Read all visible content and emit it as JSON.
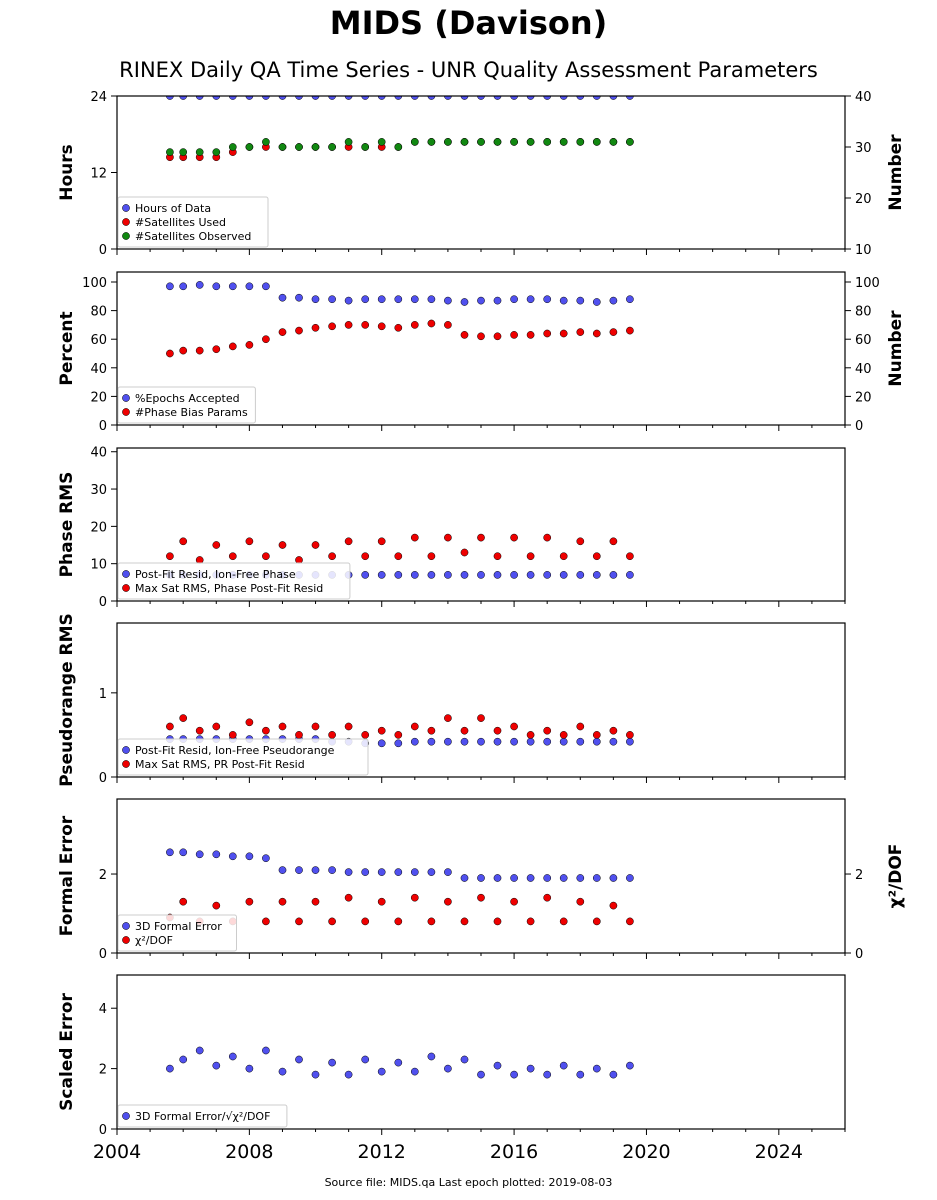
{
  "title": "MIDS (Davison)",
  "subtitle": "RINEX Daily QA Time Series - UNR Quality Assessment Parameters",
  "footer": "Source file: MIDS.qa Last epoch plotted: 2019-08-03",
  "x_ticks": [
    "2004",
    "2008",
    "2012",
    "2016",
    "2020",
    "2024"
  ],
  "colors": {
    "blue": "#5050ee",
    "red": "#ee0000",
    "green": "#118811"
  },
  "chart_data": [
    {
      "type": "scatter",
      "ylabel": "Hours",
      "ylabel_right": "Number",
      "xlim": [
        2004,
        2026
      ],
      "ylim": [
        0,
        24
      ],
      "ylim_right": [
        10,
        40
      ],
      "yticks": [
        0,
        12,
        24
      ],
      "yticks_right": [
        10,
        20,
        30,
        40
      ],
      "legend": "bottom-left",
      "series": [
        {
          "name": "Hours of Data",
          "color": "blue",
          "axis": "left",
          "x": [
            2005.6,
            2006.0,
            2006.5,
            2007.0,
            2007.5,
            2008.0,
            2008.5,
            2009.0,
            2009.5,
            2010.0,
            2010.5,
            2011.0,
            2011.5,
            2012.0,
            2012.5,
            2013.0,
            2013.5,
            2014.0,
            2014.5,
            2015.0,
            2015.5,
            2016.0,
            2016.5,
            2017.0,
            2017.5,
            2018.0,
            2018.5,
            2019.0,
            2019.5
          ],
          "y": [
            24,
            24,
            24,
            24,
            24,
            24,
            24,
            24,
            24,
            24,
            24,
            24,
            24,
            24,
            24,
            24,
            24,
            24,
            24,
            24,
            24,
            24,
            24,
            24,
            24,
            24,
            24,
            24,
            24
          ]
        },
        {
          "name": "#Satellites Used",
          "color": "red",
          "axis": "right",
          "x": [
            2005.6,
            2006.0,
            2006.5,
            2007.0,
            2007.5,
            2008.0,
            2008.5,
            2009.0,
            2009.5,
            2010.0,
            2010.5,
            2011.0,
            2011.5,
            2012.0,
            2012.5,
            2013.0,
            2013.5,
            2014.0,
            2014.5,
            2015.0,
            2015.5,
            2016.0,
            2016.5,
            2017.0,
            2017.5,
            2018.0,
            2018.5,
            2019.0,
            2019.5
          ],
          "y": [
            28,
            28,
            28,
            28,
            29,
            30,
            30,
            30,
            30,
            30,
            30,
            30,
            30,
            30,
            30,
            31,
            31,
            31,
            31,
            31,
            31,
            31,
            31,
            31,
            31,
            31,
            31,
            31,
            31
          ]
        },
        {
          "name": "#Satellites Observed",
          "color": "green",
          "axis": "right",
          "x": [
            2005.6,
            2006.0,
            2006.5,
            2007.0,
            2007.5,
            2008.0,
            2008.5,
            2009.0,
            2009.5,
            2010.0,
            2010.5,
            2011.0,
            2011.5,
            2012.0,
            2012.5,
            2013.0,
            2013.5,
            2014.0,
            2014.5,
            2015.0,
            2015.5,
            2016.0,
            2016.5,
            2017.0,
            2017.5,
            2018.0,
            2018.5,
            2019.0,
            2019.5
          ],
          "y": [
            29,
            29,
            29,
            29,
            30,
            30,
            31,
            30,
            30,
            30,
            30,
            31,
            30,
            31,
            30,
            31,
            31,
            31,
            31,
            31,
            31,
            31,
            31,
            31,
            31,
            31,
            31,
            31,
            31
          ]
        }
      ]
    },
    {
      "type": "scatter",
      "ylabel": "Percent",
      "ylabel_right": "Number",
      "xlim": [
        2004,
        2026
      ],
      "ylim": [
        0,
        107
      ],
      "ylim_right": [
        0,
        107
      ],
      "yticks": [
        0,
        20,
        40,
        60,
        80,
        100
      ],
      "yticks_right": [
        0,
        20,
        40,
        60,
        80,
        100
      ],
      "legend": "bottom-left",
      "series": [
        {
          "name": "%Epochs Accepted",
          "color": "blue",
          "axis": "left",
          "x": [
            2005.6,
            2006.0,
            2006.5,
            2007.0,
            2007.5,
            2008.0,
            2008.5,
            2009.0,
            2009.5,
            2010.0,
            2010.5,
            2011.0,
            2011.5,
            2012.0,
            2012.5,
            2013.0,
            2013.5,
            2014.0,
            2014.5,
            2015.0,
            2015.5,
            2016.0,
            2016.5,
            2017.0,
            2017.5,
            2018.0,
            2018.5,
            2019.0,
            2019.5
          ],
          "y": [
            97,
            97,
            98,
            97,
            97,
            97,
            97,
            89,
            89,
            88,
            88,
            87,
            88,
            88,
            88,
            88,
            88,
            87,
            86,
            87,
            87,
            88,
            88,
            88,
            87,
            87,
            86,
            87,
            88
          ]
        },
        {
          "name": "#Phase Bias Params",
          "color": "red",
          "axis": "right",
          "x": [
            2005.6,
            2006.0,
            2006.5,
            2007.0,
            2007.5,
            2008.0,
            2008.5,
            2009.0,
            2009.5,
            2010.0,
            2010.5,
            2011.0,
            2011.5,
            2012.0,
            2012.5,
            2013.0,
            2013.5,
            2014.0,
            2014.5,
            2015.0,
            2015.5,
            2016.0,
            2016.5,
            2017.0,
            2017.5,
            2018.0,
            2018.5,
            2019.0,
            2019.5
          ],
          "y": [
            50,
            52,
            52,
            53,
            55,
            56,
            60,
            65,
            66,
            68,
            69,
            70,
            70,
            69,
            68,
            70,
            71,
            70,
            63,
            62,
            62,
            63,
            63,
            64,
            64,
            65,
            64,
            65,
            66
          ]
        }
      ]
    },
    {
      "type": "scatter",
      "ylabel": "Phase RMS",
      "xlim": [
        2004,
        2026
      ],
      "ylim": [
        0,
        41
      ],
      "yticks": [
        0,
        10,
        20,
        30,
        40
      ],
      "legend": "bottom-left",
      "series": [
        {
          "name": "Post-Fit Resid, Ion-Free Phase",
          "color": "blue",
          "x": [
            2005.6,
            2006.0,
            2006.5,
            2007.0,
            2007.5,
            2008.0,
            2008.5,
            2009.0,
            2009.5,
            2010.0,
            2010.5,
            2011.0,
            2011.5,
            2012.0,
            2012.5,
            2013.0,
            2013.5,
            2014.0,
            2014.5,
            2015.0,
            2015.5,
            2016.0,
            2016.5,
            2017.0,
            2017.5,
            2018.0,
            2018.5,
            2019.0,
            2019.5
          ],
          "y": [
            7,
            7,
            7,
            7,
            7,
            7,
            7,
            7,
            7,
            7,
            7,
            7,
            7,
            7,
            7,
            7,
            7,
            7,
            7,
            7,
            7,
            7,
            7,
            7,
            7,
            7,
            7,
            7,
            7
          ]
        },
        {
          "name": "Max Sat RMS, Phase Post-Fit Resid",
          "color": "red",
          "x": [
            2005.6,
            2006.0,
            2006.5,
            2007.0,
            2007.5,
            2008.0,
            2008.5,
            2009.0,
            2009.5,
            2010.0,
            2010.5,
            2011.0,
            2011.5,
            2012.0,
            2012.5,
            2013.0,
            2013.5,
            2014.0,
            2014.5,
            2015.0,
            2015.5,
            2016.0,
            2016.5,
            2017.0,
            2017.5,
            2018.0,
            2018.5,
            2019.0,
            2019.5
          ],
          "y": [
            12,
            16,
            11,
            15,
            12,
            16,
            12,
            15,
            11,
            15,
            12,
            16,
            12,
            16,
            12,
            17,
            12,
            17,
            13,
            17,
            12,
            17,
            12,
            17,
            12,
            16,
            12,
            16,
            12
          ]
        }
      ]
    },
    {
      "type": "scatter",
      "ylabel": "Pseudorange RMS",
      "xlim": [
        2004,
        2026
      ],
      "ylim": [
        0,
        1.83
      ],
      "yticks": [
        0,
        1
      ],
      "legend": "bottom-left",
      "series": [
        {
          "name": "Post-Fit Resid, Ion-Free Pseudorange",
          "color": "blue",
          "x": [
            2005.6,
            2006.0,
            2006.5,
            2007.0,
            2007.5,
            2008.0,
            2008.5,
            2009.0,
            2009.5,
            2010.0,
            2010.5,
            2011.0,
            2011.5,
            2012.0,
            2012.5,
            2013.0,
            2013.5,
            2014.0,
            2014.5,
            2015.0,
            2015.5,
            2016.0,
            2016.5,
            2017.0,
            2017.5,
            2018.0,
            2018.5,
            2019.0,
            2019.5
          ],
          "y": [
            0.45,
            0.45,
            0.45,
            0.45,
            0.45,
            0.45,
            0.45,
            0.45,
            0.45,
            0.45,
            0.42,
            0.42,
            0.4,
            0.4,
            0.4,
            0.42,
            0.42,
            0.42,
            0.42,
            0.42,
            0.42,
            0.42,
            0.42,
            0.42,
            0.42,
            0.42,
            0.42,
            0.42,
            0.42
          ]
        },
        {
          "name": "Max Sat RMS, PR Post-Fit Resid",
          "color": "red",
          "x": [
            2005.6,
            2006.0,
            2006.5,
            2007.0,
            2007.5,
            2008.0,
            2008.5,
            2009.0,
            2009.5,
            2010.0,
            2010.5,
            2011.0,
            2011.5,
            2012.0,
            2012.5,
            2013.0,
            2013.5,
            2014.0,
            2014.5,
            2015.0,
            2015.5,
            2016.0,
            2016.5,
            2017.0,
            2017.5,
            2018.0,
            2018.5,
            2019.0,
            2019.5
          ],
          "y": [
            0.6,
            0.7,
            0.55,
            0.6,
            0.5,
            0.65,
            0.55,
            0.6,
            0.5,
            0.6,
            0.5,
            0.6,
            0.5,
            0.55,
            0.5,
            0.6,
            0.55,
            0.7,
            0.55,
            0.7,
            0.55,
            0.6,
            0.5,
            0.55,
            0.5,
            0.6,
            0.5,
            0.55,
            0.5
          ]
        }
      ]
    },
    {
      "type": "scatter",
      "ylabel": "Formal Error",
      "ylabel_right": "χ²/DOF",
      "xlim": [
        2004,
        2026
      ],
      "ylim": [
        0,
        3.9
      ],
      "ylim_right": [
        0,
        3.9
      ],
      "yticks": [
        0,
        2
      ],
      "yticks_right": [
        0,
        2
      ],
      "legend": "bottom-left",
      "series": [
        {
          "name": "3D Formal Error",
          "color": "blue",
          "axis": "left",
          "x": [
            2005.6,
            2006.0,
            2006.5,
            2007.0,
            2007.5,
            2008.0,
            2008.5,
            2009.0,
            2009.5,
            2010.0,
            2010.5,
            2011.0,
            2011.5,
            2012.0,
            2012.5,
            2013.0,
            2013.5,
            2014.0,
            2014.5,
            2015.0,
            2015.5,
            2016.0,
            2016.5,
            2017.0,
            2017.5,
            2018.0,
            2018.5,
            2019.0,
            2019.5
          ],
          "y": [
            2.55,
            2.55,
            2.5,
            2.5,
            2.45,
            2.45,
            2.4,
            2.1,
            2.1,
            2.1,
            2.1,
            2.05,
            2.05,
            2.05,
            2.05,
            2.05,
            2.05,
            2.05,
            1.9,
            1.9,
            1.9,
            1.9,
            1.9,
            1.9,
            1.9,
            1.9,
            1.9,
            1.9,
            1.9
          ]
        },
        {
          "name": "χ²/DOF",
          "color": "red",
          "axis": "right",
          "x": [
            2005.6,
            2006.0,
            2006.5,
            2007.0,
            2007.5,
            2008.0,
            2008.5,
            2009.0,
            2009.5,
            2010.0,
            2010.5,
            2011.0,
            2011.5,
            2012.0,
            2012.5,
            2013.0,
            2013.5,
            2014.0,
            2014.5,
            2015.0,
            2015.5,
            2016.0,
            2016.5,
            2017.0,
            2017.5,
            2018.0,
            2018.5,
            2019.0,
            2019.5
          ],
          "y": [
            0.9,
            1.3,
            0.8,
            1.2,
            0.8,
            1.3,
            0.8,
            1.3,
            0.8,
            1.3,
            0.8,
            1.4,
            0.8,
            1.3,
            0.8,
            1.4,
            0.8,
            1.3,
            0.8,
            1.4,
            0.8,
            1.3,
            0.8,
            1.4,
            0.8,
            1.3,
            0.8,
            1.2,
            0.8
          ]
        }
      ]
    },
    {
      "type": "scatter",
      "ylabel": "Scaled Error",
      "xlim": [
        2004,
        2026
      ],
      "ylim": [
        0,
        5.1
      ],
      "yticks": [
        0,
        2,
        4
      ],
      "legend": "bottom-left",
      "series": [
        {
          "name": "3D Formal Error/√χ²/DOF",
          "color": "blue",
          "x": [
            2005.6,
            2006.0,
            2006.5,
            2007.0,
            2007.5,
            2008.0,
            2008.5,
            2009.0,
            2009.5,
            2010.0,
            2010.5,
            2011.0,
            2011.5,
            2012.0,
            2012.5,
            2013.0,
            2013.5,
            2014.0,
            2014.5,
            2015.0,
            2015.5,
            2016.0,
            2016.5,
            2017.0,
            2017.5,
            2018.0,
            2018.5,
            2019.0,
            2019.5
          ],
          "y": [
            2.0,
            2.3,
            2.6,
            2.1,
            2.4,
            2.0,
            2.6,
            1.9,
            2.3,
            1.8,
            2.2,
            1.8,
            2.3,
            1.9,
            2.2,
            1.9,
            2.4,
            2.0,
            2.3,
            1.8,
            2.1,
            1.8,
            2.0,
            1.8,
            2.1,
            1.8,
            2.0,
            1.8,
            2.1
          ]
        }
      ]
    }
  ]
}
